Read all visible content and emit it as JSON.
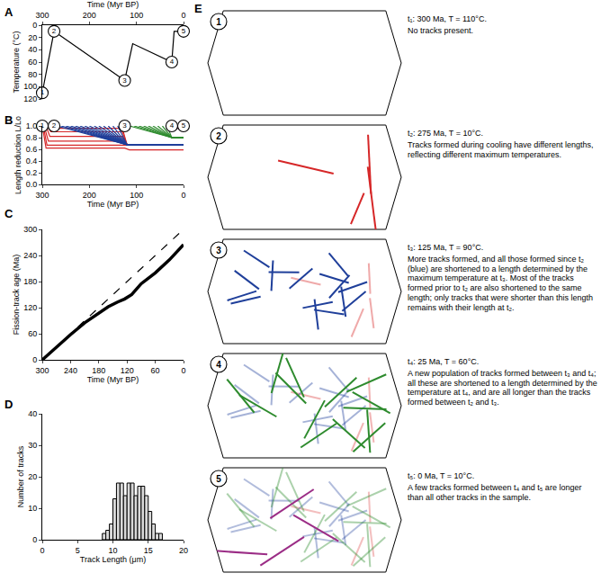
{
  "chart_data": [
    {
      "panel": "A",
      "type": "line",
      "xlabel": "Time (Myr BP)",
      "ylabel": "Temperature (°C)",
      "x": [
        300,
        275,
        125,
        108,
        25,
        20,
        0
      ],
      "values": [
        110,
        10,
        90,
        30,
        60,
        10,
        10
      ],
      "color": "#000000",
      "points": [
        {
          "label": "1",
          "x": 300,
          "y": 110
        },
        {
          "label": "2",
          "x": 275,
          "y": 10
        },
        {
          "label": "3",
          "x": 125,
          "y": 90
        },
        {
          "label": "4",
          "x": 25,
          "y": 60
        },
        {
          "label": "5",
          "x": 0,
          "y": 10
        }
      ],
      "xlim": [
        300,
        0
      ],
      "xticks": [
        300,
        200,
        100,
        0
      ],
      "ylim": [
        120,
        0
      ],
      "yticks": [
        0,
        20,
        40,
        60,
        80,
        100,
        120
      ],
      "grid": false
    },
    {
      "panel": "B",
      "type": "line",
      "xlabel": "Time (Myr BP)",
      "ylabel": "Length reduction L/Lo",
      "series": [
        {
          "color": "#d62728",
          "x": [
            300,
            292,
            125,
            115,
            0
          ],
          "values": [
            1.0,
            0.62,
            0.62,
            0.59,
            0.59
          ]
        },
        {
          "color": "#d62728",
          "x": [
            298,
            290,
            0
          ],
          "values": [
            1.0,
            0.67,
            0.67
          ]
        },
        {
          "color": "#d62728",
          "x": [
            296,
            287,
            130,
            120,
            0
          ],
          "values": [
            1.0,
            0.74,
            0.74,
            0.68,
            0.68
          ]
        },
        {
          "color": "#d62728",
          "x": [
            292,
            284,
            130,
            120,
            0
          ],
          "values": [
            1.0,
            0.82,
            0.82,
            0.68,
            0.68
          ]
        },
        {
          "color": "#d62728",
          "x": [
            288,
            282,
            130,
            120,
            0
          ],
          "values": [
            1.0,
            0.9,
            0.9,
            0.68,
            0.68
          ]
        },
        {
          "color": "#d62728",
          "x": [
            284,
            280,
            130,
            120,
            0
          ],
          "values": [
            1.0,
            0.96,
            0.96,
            0.68,
            0.68
          ]
        },
        {
          "color": "#1f3f9a",
          "x": [
            270,
            120,
            0
          ],
          "values": [
            1.0,
            0.68,
            0.68
          ]
        },
        {
          "color": "#1f3f9a",
          "x": [
            260,
            120,
            0
          ],
          "values": [
            1.0,
            0.68,
            0.68
          ]
        },
        {
          "color": "#1f3f9a",
          "x": [
            250,
            120,
            0
          ],
          "values": [
            1.0,
            0.68,
            0.68
          ]
        },
        {
          "color": "#1f3f9a",
          "x": [
            240,
            120,
            0
          ],
          "values": [
            1.0,
            0.68,
            0.68
          ]
        },
        {
          "color": "#1f3f9a",
          "x": [
            230,
            120,
            0
          ],
          "values": [
            1.0,
            0.68,
            0.68
          ]
        },
        {
          "color": "#1f3f9a",
          "x": [
            220,
            120,
            0
          ],
          "values": [
            1.0,
            0.68,
            0.68
          ]
        },
        {
          "color": "#1f3f9a",
          "x": [
            210,
            120,
            0
          ],
          "values": [
            1.0,
            0.68,
            0.68
          ]
        },
        {
          "color": "#1f3f9a",
          "x": [
            200,
            120,
            0
          ],
          "values": [
            1.0,
            0.68,
            0.68
          ]
        },
        {
          "color": "#1f3f9a",
          "x": [
            190,
            120,
            0
          ],
          "values": [
            1.0,
            0.68,
            0.68
          ]
        },
        {
          "color": "#1f3f9a",
          "x": [
            180,
            120,
            0
          ],
          "values": [
            1.0,
            0.68,
            0.68
          ]
        },
        {
          "color": "#1f3f9a",
          "x": [
            170,
            120,
            0
          ],
          "values": [
            1.0,
            0.68,
            0.68
          ]
        },
        {
          "color": "#1f3f9a",
          "x": [
            160,
            120,
            0
          ],
          "values": [
            1.0,
            0.68,
            0.68
          ]
        },
        {
          "color": "#1f3f9a",
          "x": [
            150,
            120,
            0
          ],
          "values": [
            1.0,
            0.68,
            0.68
          ]
        },
        {
          "color": "#1f3f9a",
          "x": [
            140,
            120,
            0
          ],
          "values": [
            1.0,
            0.68,
            0.68
          ]
        },
        {
          "color": "#2e8b2e",
          "x": [
            115,
            25,
            0
          ],
          "values": [
            1.0,
            0.8,
            0.8
          ]
        },
        {
          "color": "#2e8b2e",
          "x": [
            105,
            25,
            0
          ],
          "values": [
            1.0,
            0.8,
            0.8
          ]
        },
        {
          "color": "#2e8b2e",
          "x": [
            95,
            25,
            0
          ],
          "values": [
            1.0,
            0.8,
            0.8
          ]
        },
        {
          "color": "#2e8b2e",
          "x": [
            85,
            25,
            0
          ],
          "values": [
            1.0,
            0.8,
            0.8
          ]
        },
        {
          "color": "#2e8b2e",
          "x": [
            75,
            25,
            0
          ],
          "values": [
            1.0,
            0.8,
            0.8
          ]
        },
        {
          "color": "#2e8b2e",
          "x": [
            65,
            25,
            0
          ],
          "values": [
            1.0,
            0.8,
            0.8
          ]
        },
        {
          "color": "#2e8b2e",
          "x": [
            55,
            25,
            0
          ],
          "values": [
            1.0,
            0.8,
            0.8
          ]
        },
        {
          "color": "#2e8b2e",
          "x": [
            45,
            25,
            0
          ],
          "values": [
            1.0,
            0.8,
            0.8
          ]
        },
        {
          "color": "#2e8b2e",
          "x": [
            35,
            25,
            0
          ],
          "values": [
            1.0,
            0.8,
            0.8
          ]
        },
        {
          "color": "#9b2d86",
          "x": [
            20,
            0
          ],
          "values": [
            1.0,
            0.9
          ]
        },
        {
          "color": "#9b2d86",
          "x": [
            12,
            0
          ],
          "values": [
            1.0,
            0.93
          ]
        }
      ],
      "stage_labels": [
        {
          "label": "1",
          "x": 300
        },
        {
          "label": "2",
          "x": 275
        },
        {
          "label": "3",
          "x": 125
        },
        {
          "label": "4",
          "x": 25
        },
        {
          "label": "5",
          "x": 0
        }
      ],
      "xlim": [
        300,
        0
      ],
      "xticks": [
        300,
        200,
        100,
        0
      ],
      "ylim": [
        0,
        1.0
      ],
      "yticks": [
        {
          "value": 0,
          "label": "0.0"
        },
        {
          "value": 0.2,
          "label": "0.2"
        },
        {
          "value": 0.4,
          "label": "0.4"
        },
        {
          "value": 0.6,
          "label": "0.6"
        },
        {
          "value": 0.8,
          "label": "0.8"
        },
        {
          "value": 1.0,
          "label": "1.0"
        }
      ],
      "grid": false
    },
    {
      "panel": "C",
      "type": "line",
      "xlabel": "Time (Myr BP)",
      "ylabel": "Fission-track age (Ma)",
      "series": [
        {
          "color": "#000000",
          "line_style": "solid",
          "x": [
            300,
            270,
            240,
            210,
            180,
            160,
            140,
            125,
            110,
            90,
            60,
            30,
            0
          ],
          "values": [
            0,
            30,
            58,
            85,
            108,
            122,
            133,
            140,
            150,
            175,
            200,
            230,
            265
          ]
        },
        {
          "color": "#000000",
          "line_style": "dashed",
          "x": [
            300,
            0
          ],
          "values": [
            0,
            300
          ]
        }
      ],
      "xlim": [
        300,
        0
      ],
      "xticks": [
        300,
        240,
        180,
        120,
        60,
        0
      ],
      "ylim": [
        0,
        300
      ],
      "yticks": [
        0,
        60,
        120,
        180,
        240,
        300
      ],
      "grid": false
    },
    {
      "panel": "D",
      "type": "histogram",
      "xlabel": "Track Length (μm)",
      "ylabel": "Number of tracks",
      "bins": [
        8.5,
        9,
        9.5,
        10,
        10.5,
        11,
        11.5,
        12,
        12.5,
        13,
        13.5,
        14,
        14.5,
        15,
        15.5,
        16,
        16.5,
        17
      ],
      "values": [
        2,
        3,
        5,
        13,
        18,
        18,
        14,
        18,
        18,
        14,
        17,
        17,
        14,
        9,
        5,
        2,
        2
      ],
      "color": "#d9d9d9",
      "xlim": [
        0,
        20
      ],
      "xticks": [
        0,
        5,
        10,
        15,
        20
      ],
      "ylim": [
        0,
        40
      ],
      "yticks": [
        0,
        10,
        20,
        30,
        40
      ],
      "grid": false
    }
  ],
  "diagram": {
    "panel": "E",
    "stages": [
      {
        "number": "1",
        "heading": "t₁: 300 Ma, T = 110°C.",
        "text": "No tracks present."
      },
      {
        "number": "2",
        "heading": "t₂: 275 Ma, T = 10°C.",
        "text": "Tracks formed during cooling have different lengths, reflecting different maximum temperatures."
      },
      {
        "number": "3",
        "heading": "t₃: 125 Ma, T = 90°C.",
        "text": "More tracks formed, and all those formed since t₂ (blue) are shortened to a length determined by the maximum temperature at t₃. Most of the tracks formed prior to t₂ are also shortened to the same length; only tracks that were shorter than this length remains with their length at t₂."
      },
      {
        "number": "4",
        "heading": "t₄: 25 Ma, T = 60°C.",
        "text": "A new population of tracks formed between t₃ and t₄; all these are shortened to a length determined by the temperature at t₄, and are all longer than the tracks formed between t₂ and t₃."
      },
      {
        "number": "5",
        "heading": "t₅: 0 Ma, T = 10°C.",
        "text": "A few tracks formed between t₄ and t₅ are longer than all other tracks in the sample."
      }
    ]
  }
}
